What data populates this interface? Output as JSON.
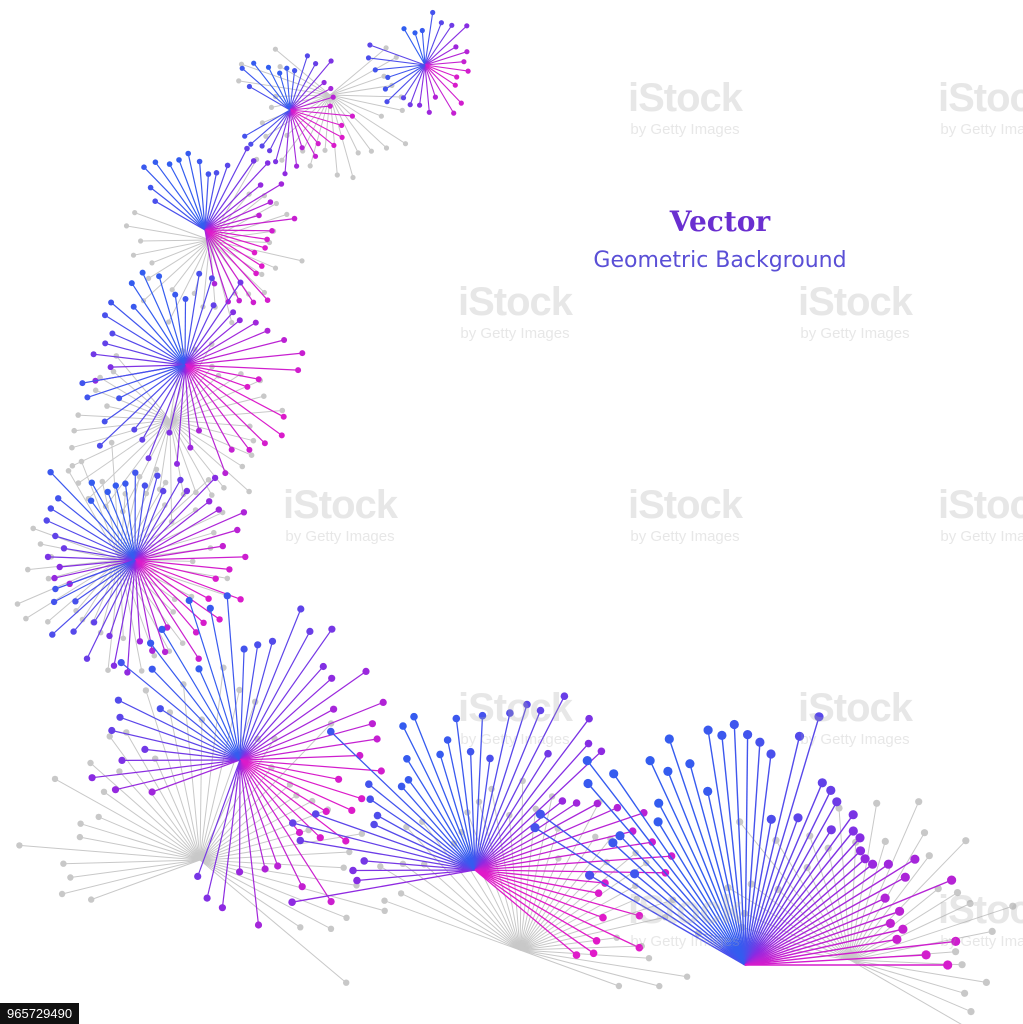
{
  "headline": {
    "title": "Vector",
    "subtitle": "Geometric Background"
  },
  "watermark": {
    "brand": "iStock",
    "credit": "by Getty Images"
  },
  "stock_id": "965729490",
  "colors": {
    "magenta": "#e21ac8",
    "violet": "#8a2be2",
    "blue": "#2f5ff0",
    "gray": "#c8c8c8",
    "title": "#6a2fd0",
    "subtitle": "#5a4fd6"
  }
}
